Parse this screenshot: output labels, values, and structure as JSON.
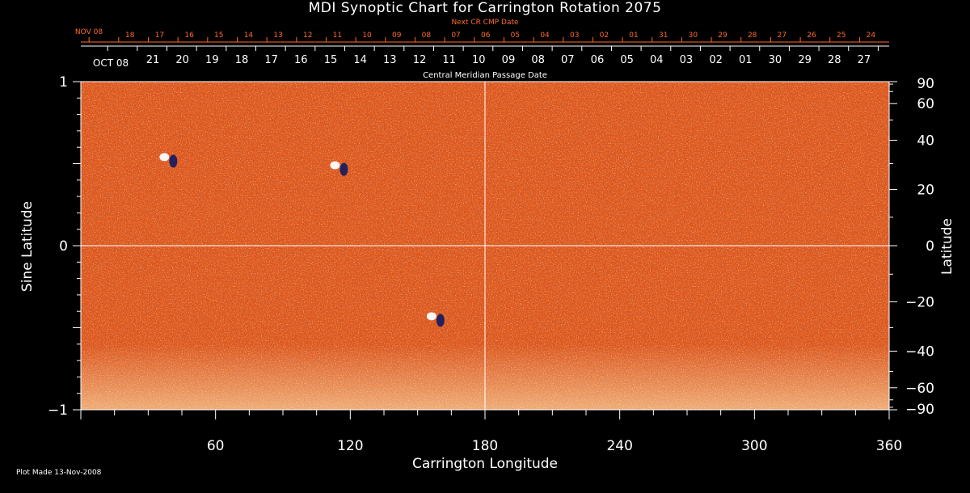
{
  "title": "MDI Synoptic Chart for Carrington Rotation 2075",
  "next_cr_label": "Next CR CMP Date",
  "cmp_label": "Central Meridian Passage Date",
  "plot_made": "Plot Made 13-Nov-2008",
  "colors": {
    "background": "#000000",
    "field_base": "#e0561b",
    "positive": "#ffffff",
    "negative": "#1a1e5e",
    "next_cr_text": "#ff6a2a",
    "axis": "#ffffff"
  },
  "chart_data": {
    "type": "heatmap",
    "title": "MDI Synoptic Chart for Carrington Rotation 2075",
    "xlabel": "Carrington Longitude",
    "ylabel_left": "Sine Latitude",
    "ylabel_right": "Latitude",
    "xlim": [
      0,
      360
    ],
    "ylim": [
      -1,
      1
    ],
    "x_ticks": [
      60,
      120,
      180,
      240,
      300,
      360
    ],
    "y_left_ticks": [
      {
        "value": 1,
        "label": "1"
      },
      {
        "value": 0,
        "label": "0"
      },
      {
        "value": -1,
        "label": "−1"
      }
    ],
    "y_right_ticks": [
      {
        "lat": 90,
        "label": "90"
      },
      {
        "lat": 60,
        "label": "60"
      },
      {
        "lat": 40,
        "label": "40"
      },
      {
        "lat": 20,
        "label": "20"
      },
      {
        "lat": 0,
        "label": "0"
      },
      {
        "lat": -20,
        "label": "−20"
      },
      {
        "lat": -40,
        "label": "−40"
      },
      {
        "lat": -60,
        "label": "−60"
      },
      {
        "lat": -90,
        "label": "−90"
      }
    ],
    "cmp_date_axis": {
      "first_label": "OCT 08",
      "days": [
        "21",
        "20",
        "19",
        "18",
        "17",
        "16",
        "15",
        "14",
        "13",
        "12",
        "11",
        "10",
        "09",
        "08",
        "07",
        "06",
        "05",
        "04",
        "03",
        "02",
        "01",
        "30",
        "29",
        "28",
        "27"
      ]
    },
    "next_cr_date_axis": {
      "first_label": "NOV 08",
      "days": [
        "18",
        "17",
        "16",
        "15",
        "14",
        "13",
        "12",
        "11",
        "10",
        "09",
        "08",
        "07",
        "06",
        "05",
        "04",
        "03",
        "02",
        "01",
        "31",
        "30",
        "29",
        "28",
        "27",
        "26",
        "25",
        "24"
      ]
    },
    "gridlines": {
      "vertical": [
        180
      ],
      "horizontal": [
        0
      ]
    },
    "active_regions": [
      {
        "lon": 39,
        "sinlat": 0.53,
        "polarity": "mixed"
      },
      {
        "lon": 115,
        "sinlat": 0.48,
        "polarity": "bipolar"
      },
      {
        "lon": 158,
        "sinlat": -0.44,
        "polarity": "bipolar"
      }
    ]
  }
}
